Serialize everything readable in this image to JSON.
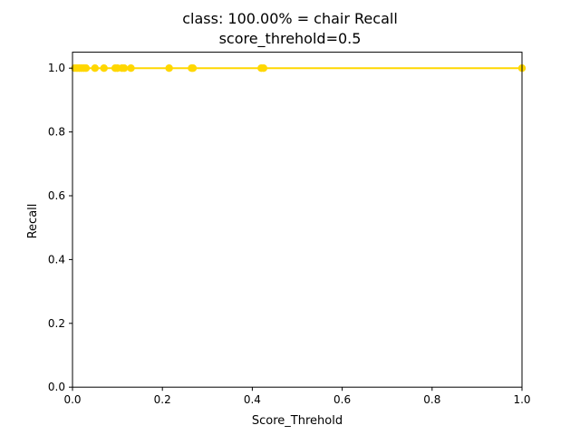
{
  "chart_data": {
    "type": "line",
    "title_line1": "class: 100.00% = chair Recall",
    "title_line2": "score_threhold=0.5",
    "xlabel": "Score_Threhold",
    "ylabel": "Recall",
    "xlim": [
      0.0,
      1.0
    ],
    "ylim": [
      0.0,
      1.05
    ],
    "xticks": [
      0.0,
      0.2,
      0.4,
      0.6,
      0.8,
      1.0
    ],
    "xtick_labels": [
      "0.0",
      "0.2",
      "0.4",
      "0.6",
      "0.8",
      "1.0"
    ],
    "yticks": [
      0.0,
      0.2,
      0.4,
      0.6,
      0.8,
      1.0
    ],
    "ytick_labels": [
      "0.0",
      "0.2",
      "0.4",
      "0.6",
      "0.8",
      "1.0"
    ],
    "grid": false,
    "series": [
      {
        "color": "#FFD700",
        "marker": "circle",
        "x": [
          0.005,
          0.01,
          0.015,
          0.02,
          0.025,
          0.03,
          0.05,
          0.07,
          0.095,
          0.1,
          0.11,
          0.115,
          0.13,
          0.215,
          0.265,
          0.268,
          0.42,
          0.425,
          1.0
        ],
        "y": [
          1.0,
          1.0,
          1.0,
          1.0,
          1.0,
          1.0,
          1.0,
          1.0,
          1.0,
          1.0,
          1.0,
          1.0,
          1.0,
          1.0,
          1.0,
          1.0,
          1.0,
          1.0,
          1.0
        ]
      }
    ]
  }
}
